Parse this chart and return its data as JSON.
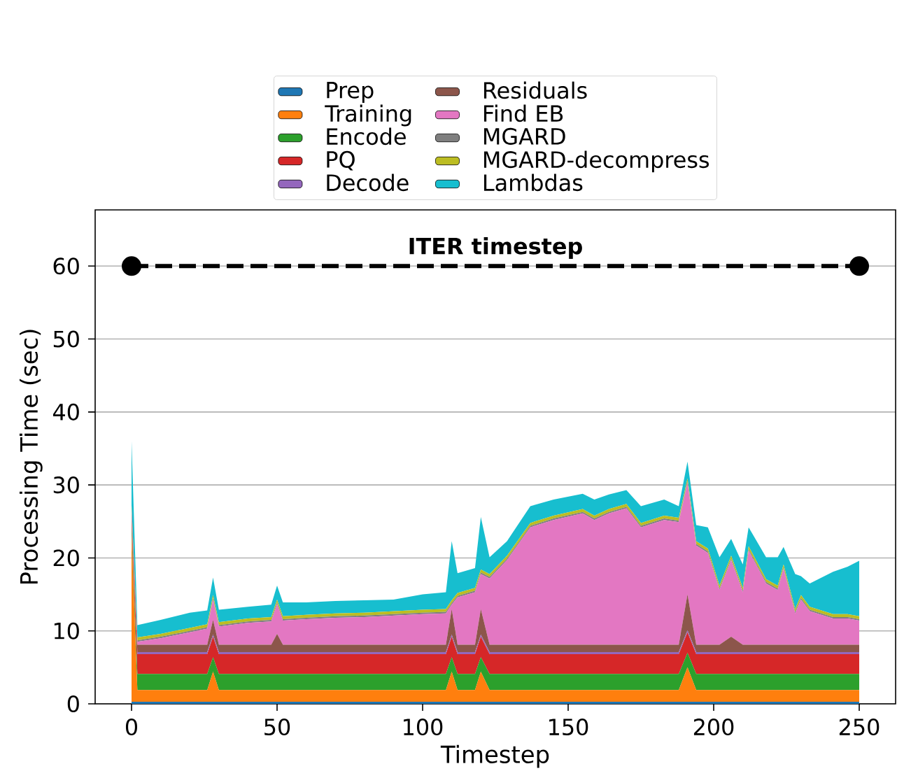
{
  "chart_data": {
    "type": "area",
    "stacked": true,
    "xlabel": "Timestep",
    "ylabel": "Processing Time (sec)",
    "x": [
      0,
      2,
      10,
      20,
      26,
      28,
      30,
      40,
      48,
      50,
      52,
      60,
      70,
      80,
      90,
      100,
      108,
      110,
      112,
      118,
      120,
      123,
      129,
      137,
      145,
      155,
      159,
      164,
      170,
      175,
      183,
      188,
      191,
      194,
      198,
      202,
      206,
      210,
      212,
      218,
      222,
      224,
      228,
      230,
      233,
      241,
      246,
      250
    ],
    "xlim": [
      -12.5,
      262.5
    ],
    "ylim": [
      0,
      67.7
    ],
    "xticks": [
      0,
      50,
      100,
      150,
      200,
      250
    ],
    "yticks": [
      0,
      10,
      20,
      30,
      40,
      50,
      60
    ],
    "grid": "y",
    "legend": "top",
    "series": [
      {
        "name": "Prep",
        "color": "#1f77b4",
        "values": [
          0.3,
          0.3,
          0.3,
          0.3,
          0.3,
          0.3,
          0.3,
          0.3,
          0.3,
          0.3,
          0.3,
          0.3,
          0.3,
          0.3,
          0.3,
          0.3,
          0.3,
          0.3,
          0.3,
          0.3,
          0.3,
          0.3,
          0.3,
          0.3,
          0.3,
          0.3,
          0.3,
          0.3,
          0.3,
          0.3,
          0.3,
          0.3,
          0.3,
          0.3,
          0.3,
          0.3,
          0.3,
          0.3,
          0.3,
          0.3,
          0.3,
          0.3,
          0.3,
          0.3,
          0.3,
          0.3,
          0.3,
          0.3
        ]
      },
      {
        "name": "Training",
        "color": "#ff7f0e",
        "values": [
          23,
          1.6,
          1.6,
          1.6,
          1.6,
          4.1,
          1.6,
          1.6,
          1.6,
          1.6,
          1.6,
          1.6,
          1.6,
          1.6,
          1.6,
          1.6,
          1.6,
          4.1,
          1.6,
          1.6,
          4.1,
          1.6,
          1.6,
          1.6,
          1.6,
          1.6,
          1.6,
          1.6,
          1.6,
          1.6,
          1.6,
          1.6,
          4.7,
          1.6,
          1.6,
          1.6,
          1.6,
          1.6,
          1.6,
          1.6,
          1.6,
          1.6,
          1.6,
          1.6,
          1.6,
          1.6,
          1.6,
          1.6
        ]
      },
      {
        "name": "Encode",
        "color": "#2ca02c",
        "values": [
          1,
          2.2,
          2.2,
          2.2,
          2.2,
          2.0,
          2.2,
          2.2,
          2.2,
          2.2,
          2.2,
          2.2,
          2.2,
          2.2,
          2.2,
          2.2,
          2.2,
          2.0,
          2.2,
          2.2,
          2.0,
          2.2,
          2.2,
          2.2,
          2.2,
          2.2,
          2.2,
          2.2,
          2.2,
          2.2,
          2.2,
          2.2,
          2.0,
          2.2,
          2.2,
          2.2,
          2.2,
          2.2,
          2.2,
          2.2,
          2.2,
          2.2,
          2.2,
          2.2,
          2.2,
          2.2,
          2.2,
          2.2
        ]
      },
      {
        "name": "PQ",
        "color": "#d62728",
        "values": [
          1,
          2.7,
          2.7,
          2.7,
          2.7,
          2.8,
          2.7,
          2.7,
          2.7,
          2.7,
          2.7,
          2.7,
          2.7,
          2.7,
          2.7,
          2.7,
          2.7,
          2.8,
          2.7,
          2.7,
          2.8,
          2.7,
          2.7,
          2.7,
          2.7,
          2.7,
          2.7,
          2.7,
          2.7,
          2.7,
          2.7,
          2.7,
          2.8,
          2.7,
          2.7,
          2.7,
          2.7,
          2.7,
          2.7,
          2.7,
          2.7,
          2.7,
          2.7,
          2.7,
          2.7,
          2.7,
          2.7,
          2.7
        ]
      },
      {
        "name": "Decode",
        "color": "#9467bd",
        "values": [
          0.3,
          0.3,
          0.3,
          0.3,
          0.3,
          0.3,
          0.3,
          0.3,
          0.3,
          0.3,
          0.3,
          0.3,
          0.3,
          0.3,
          0.3,
          0.3,
          0.3,
          0.3,
          0.3,
          0.3,
          0.3,
          0.3,
          0.3,
          0.3,
          0.3,
          0.3,
          0.3,
          0.3,
          0.3,
          0.3,
          0.3,
          0.3,
          0.3,
          0.3,
          0.3,
          0.3,
          0.3,
          0.3,
          0.3,
          0.3,
          0.3,
          0.3,
          0.3,
          0.3,
          0.3,
          0.3,
          0.3,
          0.3
        ]
      },
      {
        "name": "Residuals",
        "color": "#8c564b",
        "values": [
          0.5,
          1,
          1,
          1,
          1,
          2.0,
          1,
          1,
          1,
          2.5,
          1,
          1,
          1,
          1,
          1,
          1,
          1,
          3.5,
          1,
          1,
          3.5,
          1,
          1,
          1,
          1,
          1,
          1,
          1,
          1,
          1,
          1,
          1,
          4.9,
          1,
          1,
          1,
          2.1,
          1,
          1,
          1,
          1,
          1,
          1,
          1,
          1,
          1,
          1,
          1
        ]
      },
      {
        "name": "Find EB",
        "color": "#e377c2",
        "values": [
          0.5,
          0.4,
          0.9,
          1.7,
          2.2,
          2.8,
          2.5,
          3.0,
          3.2,
          4.1,
          3.3,
          3.5,
          3.7,
          3.8,
          4.0,
          4.2,
          4.3,
          0.6,
          6.5,
          7.2,
          4.8,
          9.1,
          11.6,
          16.1,
          17.1,
          18.0,
          17.1,
          18.0,
          18.7,
          16.1,
          17.1,
          16.8,
          15.3,
          13.6,
          12.6,
          7.5,
          10.5,
          7.2,
          12.9,
          8.4,
          7.5,
          10.4,
          4.3,
          6.2,
          4.6,
          3.6,
          3.6,
          3.3
        ]
      },
      {
        "name": "MGARD",
        "color": "#7f7f7f",
        "values": [
          0.2,
          0.2,
          0.2,
          0.2,
          0.2,
          0.2,
          0.2,
          0.2,
          0.2,
          0.2,
          0.2,
          0.2,
          0.2,
          0.2,
          0.2,
          0.2,
          0.2,
          0.2,
          0.2,
          0.2,
          0.2,
          0.2,
          0.2,
          0.2,
          0.2,
          0.2,
          0.2,
          0.2,
          0.2,
          0.2,
          0.2,
          0.2,
          0.2,
          0.2,
          0.2,
          0.2,
          0.2,
          0.2,
          0.2,
          0.2,
          0.2,
          0.2,
          0.2,
          0.2,
          0.2,
          0.2,
          0.2,
          0.2
        ]
      },
      {
        "name": "MGARD-decompress",
        "color": "#bcbd22",
        "values": [
          0.4,
          0.4,
          0.4,
          0.4,
          0.4,
          0.4,
          0.4,
          0.4,
          0.4,
          0.4,
          0.4,
          0.4,
          0.4,
          0.4,
          0.4,
          0.4,
          0.4,
          0.4,
          0.4,
          0.4,
          0.4,
          0.4,
          0.4,
          0.4,
          0.4,
          0.4,
          0.4,
          0.4,
          0.4,
          0.4,
          0.4,
          0.4,
          0.4,
          0.4,
          0.4,
          0.4,
          0.4,
          0.4,
          0.4,
          0.4,
          0.4,
          0.4,
          0.4,
          0.4,
          0.4,
          0.4,
          0.4,
          0.4
        ]
      },
      {
        "name": "Lambdas",
        "color": "#17becf",
        "values": [
          8.8,
          1.7,
          1.9,
          2.1,
          1.9,
          2.4,
          1.7,
          1.6,
          1.7,
          1.9,
          1.9,
          1.7,
          1.7,
          1.7,
          1.6,
          2.1,
          2.3,
          8.1,
          2.7,
          2.7,
          7.2,
          2.3,
          2.0,
          2.3,
          2.2,
          2.1,
          2.2,
          2.0,
          1.9,
          2.3,
          2.2,
          1.6,
          2.3,
          2.2,
          2.9,
          3.9,
          2.3,
          3.2,
          2.6,
          3.0,
          3.9,
          2.4,
          4.8,
          2.6,
          3.2,
          5.8,
          6.5,
          7.6
        ]
      },
      {
        "name": "ITER timestep",
        "type": "line",
        "color": "#000000",
        "line_style": "dashed",
        "marker": "circle",
        "x": [
          0,
          250
        ],
        "values": [
          60,
          60
        ]
      }
    ]
  }
}
